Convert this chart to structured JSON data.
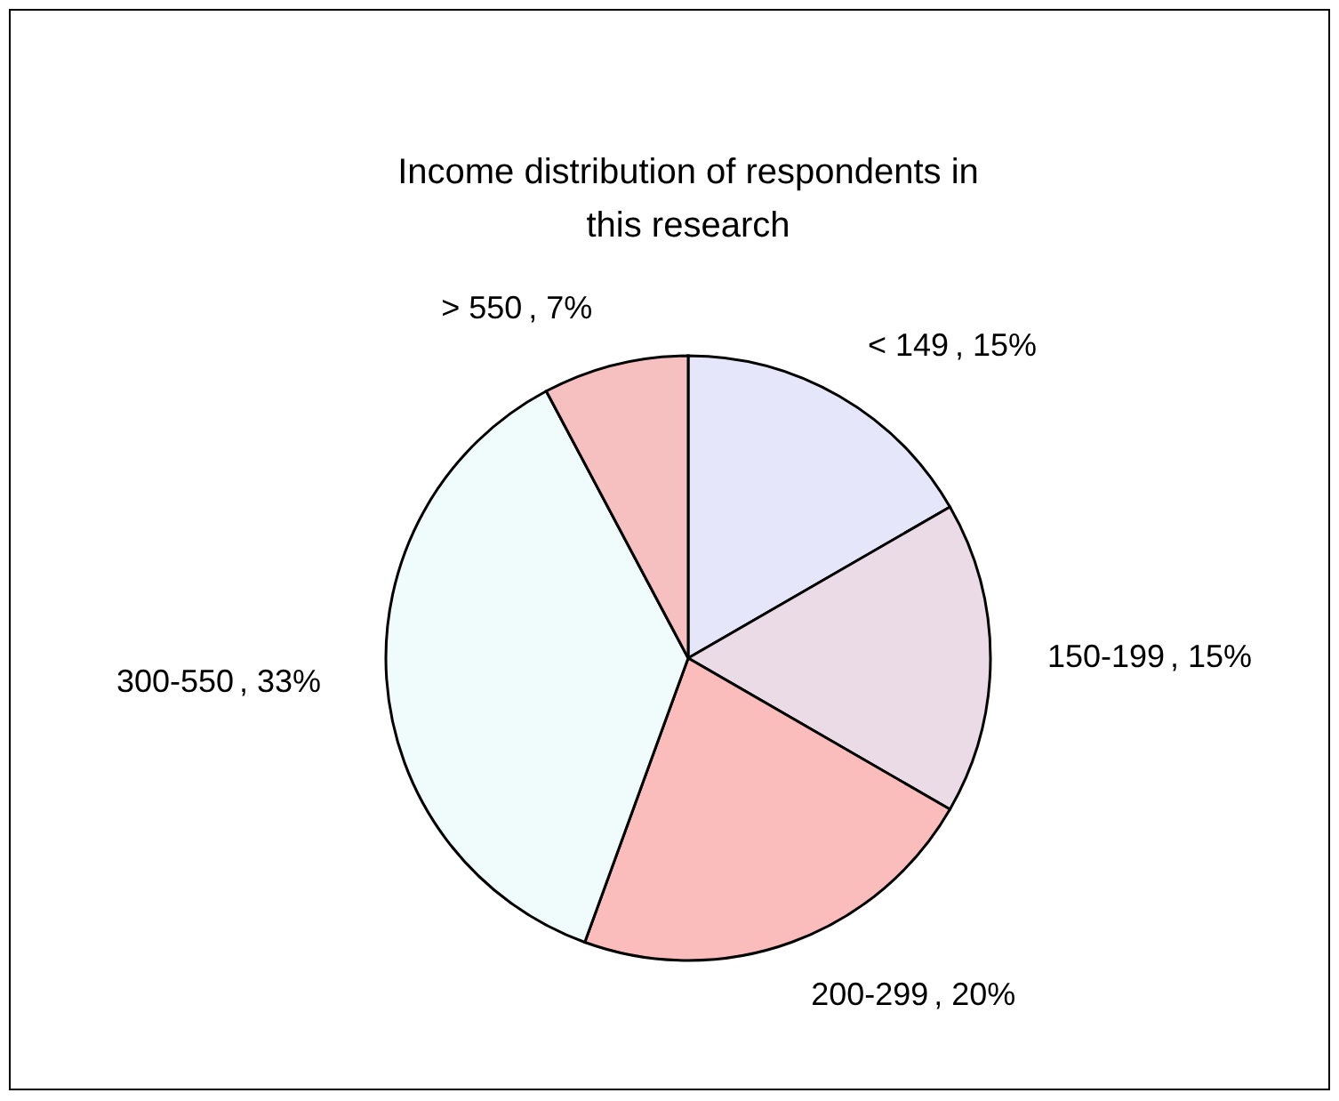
{
  "chart_data": {
    "type": "pie",
    "title": "Income distribution of respondents in this research",
    "categories": [
      "< 149",
      "150-199",
      "200-299",
      "300-550",
      "> 550"
    ],
    "values": [
      15,
      15,
      20,
      33,
      7
    ],
    "colors": [
      "#e6e6fa",
      "#eadbe6",
      "#fbbcbc",
      "#f0fcfc",
      "#f6c0c0"
    ],
    "value_labels": [
      ", 15%",
      ", 15%",
      ", 20%",
      ", 33%",
      ", 7%"
    ],
    "legend": false
  }
}
